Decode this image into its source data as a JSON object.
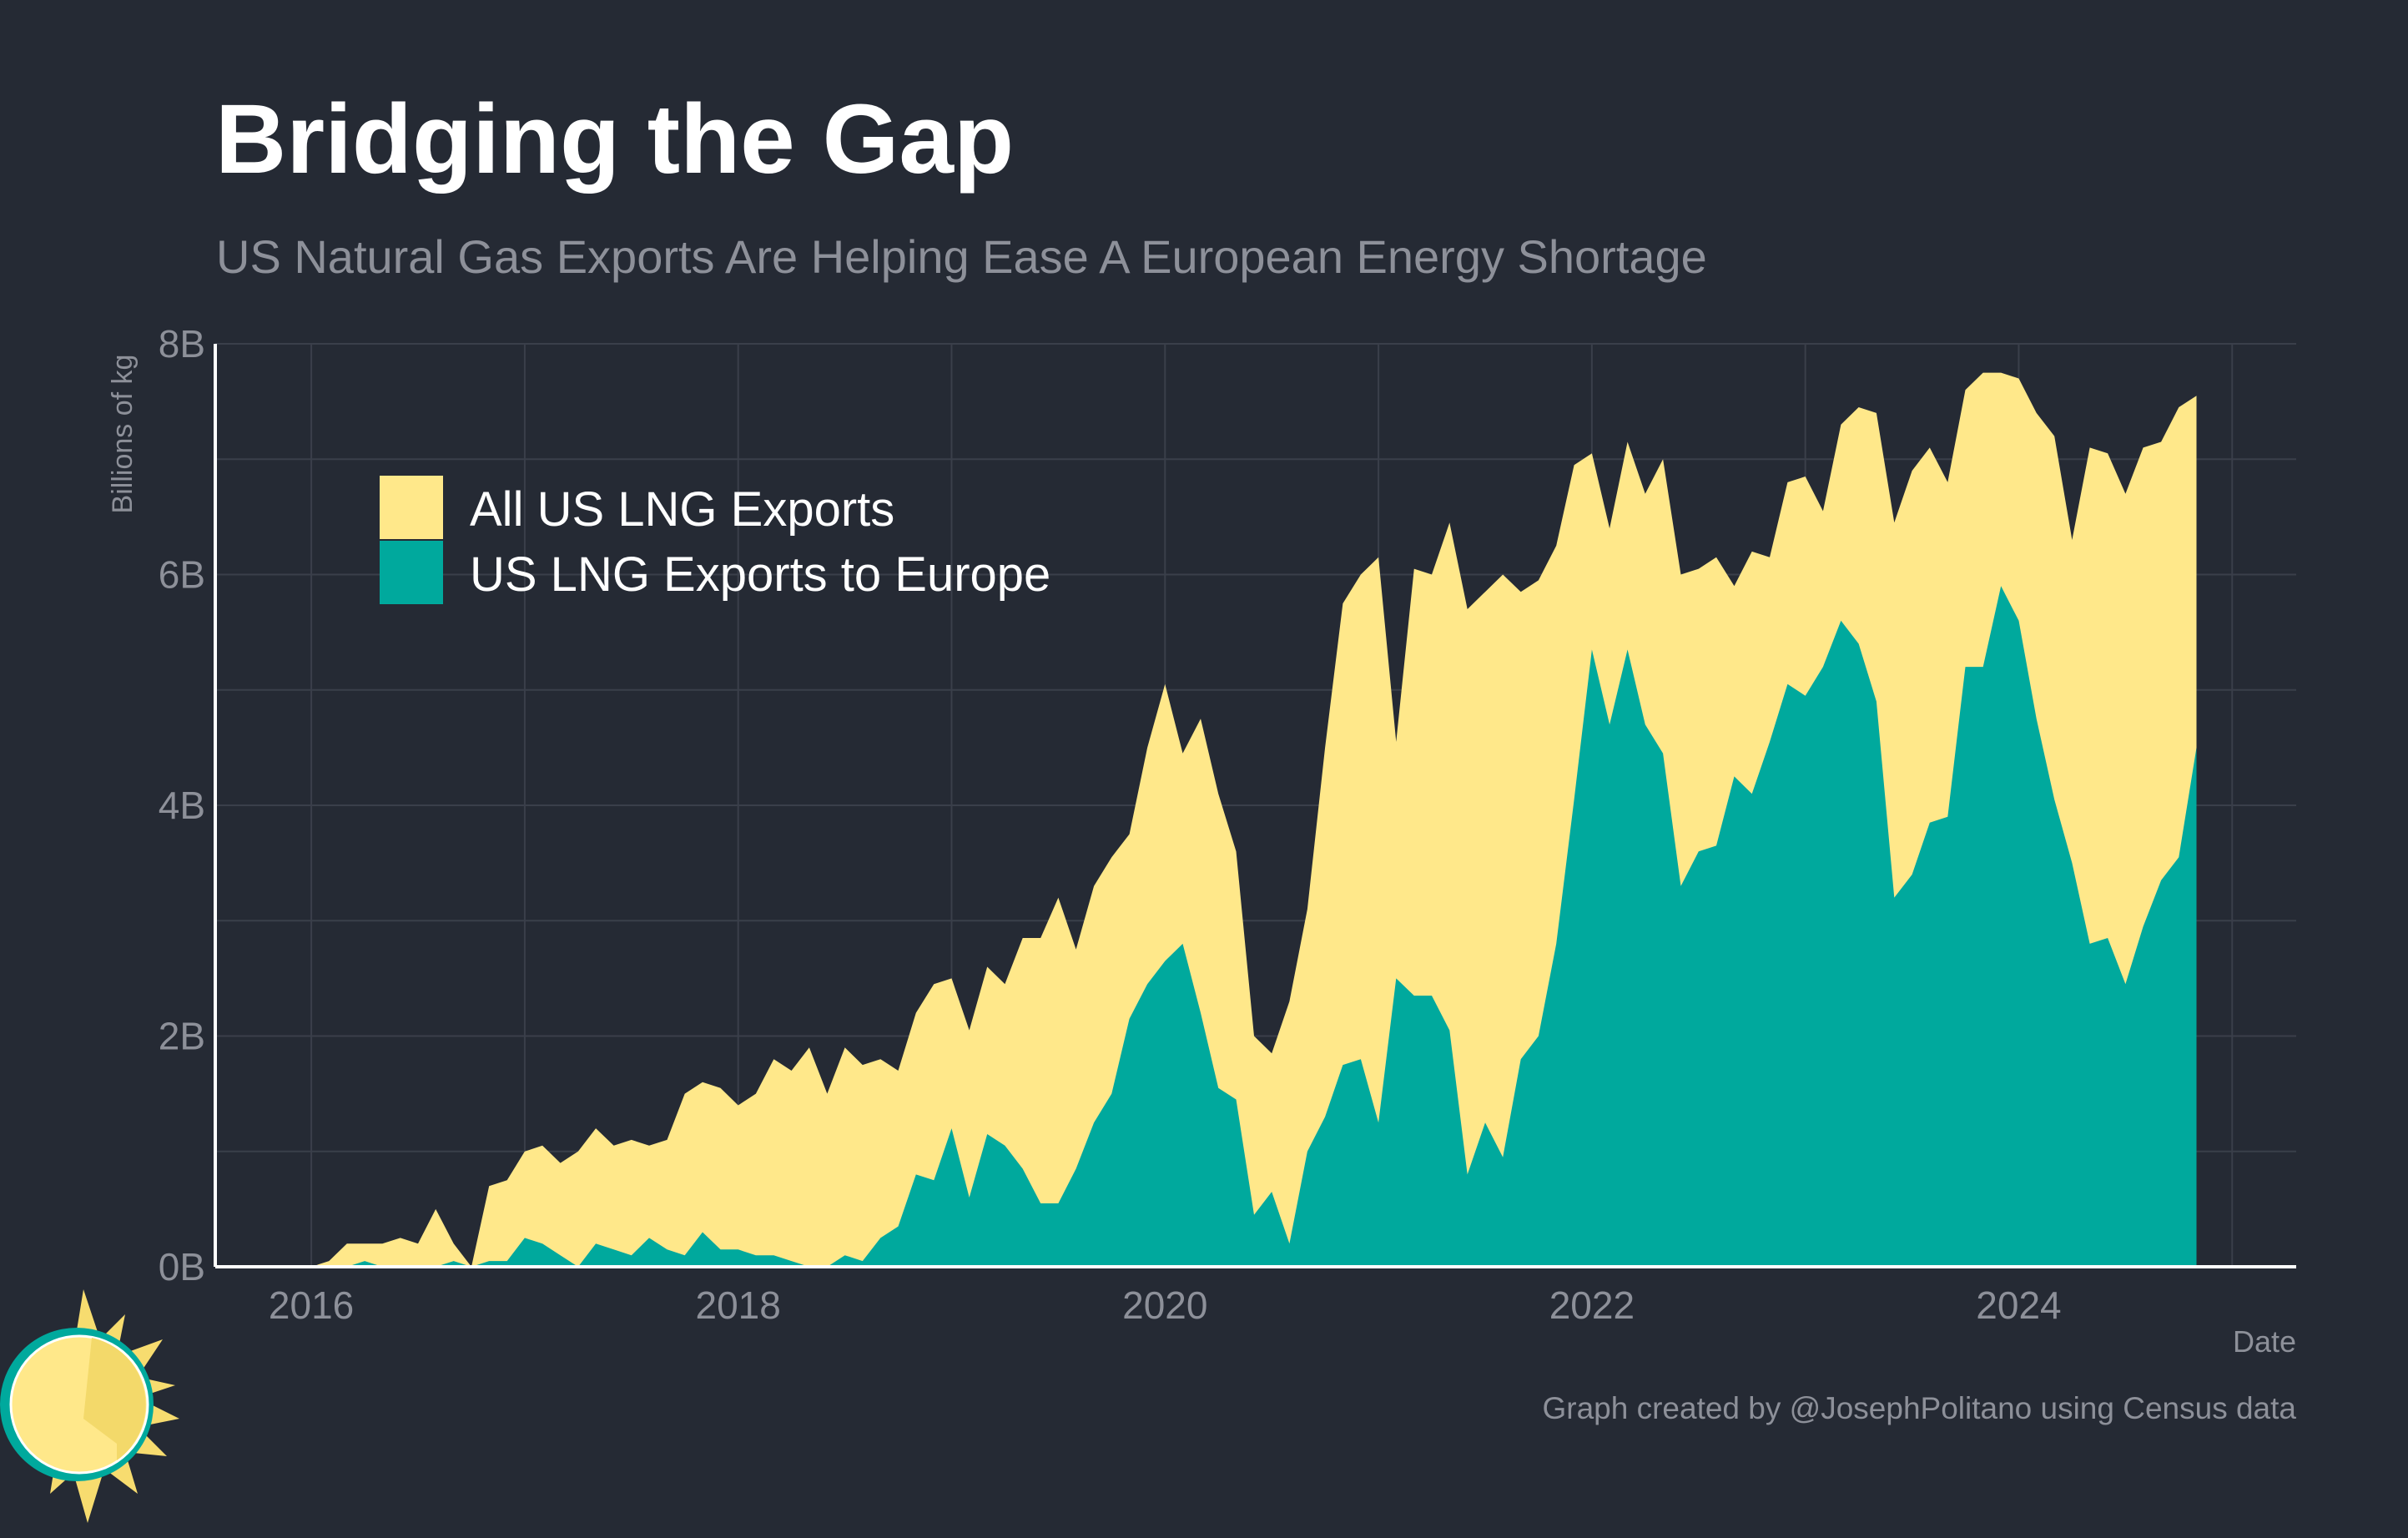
{
  "header": {
    "title": "Bridging the Gap",
    "subtitle": "US Natural Gas Exports Are Helping Ease A European Energy Shortage"
  },
  "caption": "Graph created by @JosephPolitano using Census data",
  "logo": {
    "icon": "sun-logo-icon",
    "colors": {
      "ring": "#00a99d",
      "face": "#ffe88a",
      "rays": "#f7dc6f"
    }
  },
  "colors": {
    "background": "#252a34",
    "grid": "#3a3f4a",
    "axis": "#ffffff",
    "text_muted": "#8d9099"
  },
  "chart_data": {
    "type": "area",
    "xlabel": "Date",
    "ylabel": "Billions of kg",
    "xlim": [
      2015.55,
      2025.3
    ],
    "ylim": [
      0,
      8
    ],
    "x_ticks": [
      2016,
      2018,
      2020,
      2022,
      2024
    ],
    "x_tick_labels": [
      "2016",
      "2018",
      "2020",
      "2022",
      "2024"
    ],
    "y_ticks": [
      0,
      2,
      4,
      6,
      8
    ],
    "y_tick_labels": [
      "0B",
      "2B",
      "4B",
      "6B",
      "8B"
    ],
    "grid": true,
    "legend_position": "top-left",
    "x": [
      2016.0,
      2016.083,
      2016.167,
      2016.25,
      2016.333,
      2016.417,
      2016.5,
      2016.583,
      2016.667,
      2016.75,
      2016.833,
      2016.917,
      2017.0,
      2017.083,
      2017.167,
      2017.25,
      2017.333,
      2017.417,
      2017.5,
      2017.583,
      2017.667,
      2017.75,
      2017.833,
      2017.917,
      2018.0,
      2018.083,
      2018.167,
      2018.25,
      2018.333,
      2018.417,
      2018.5,
      2018.583,
      2018.667,
      2018.75,
      2018.833,
      2018.917,
      2019.0,
      2019.083,
      2019.167,
      2019.25,
      2019.333,
      2019.417,
      2019.5,
      2019.583,
      2019.667,
      2019.75,
      2019.833,
      2019.917,
      2020.0,
      2020.083,
      2020.167,
      2020.25,
      2020.333,
      2020.417,
      2020.5,
      2020.583,
      2020.667,
      2020.75,
      2020.833,
      2020.917,
      2021.0,
      2021.083,
      2021.167,
      2021.25,
      2021.333,
      2021.417,
      2021.5,
      2021.583,
      2021.667,
      2021.75,
      2021.833,
      2021.917,
      2022.0,
      2022.083,
      2022.167,
      2022.25,
      2022.333,
      2022.417,
      2022.5,
      2022.583,
      2022.667,
      2022.75,
      2022.833,
      2022.917,
      2023.0,
      2023.083,
      2023.167,
      2023.25,
      2023.333,
      2023.417,
      2023.5,
      2023.583,
      2023.667,
      2023.75,
      2023.833,
      2023.917,
      2024.0,
      2024.083,
      2024.167,
      2024.25,
      2024.333,
      2024.417,
      2024.5,
      2024.583,
      2024.667,
      2024.75,
      2024.833
    ],
    "series": [
      {
        "name": "All US LNG Exports",
        "color": "#ffe88a",
        "values": [
          0.0,
          0.05,
          0.2,
          0.2,
          0.2,
          0.25,
          0.2,
          0.5,
          0.2,
          0.0,
          0.7,
          0.75,
          1.0,
          1.05,
          0.9,
          1.0,
          1.2,
          1.05,
          1.1,
          1.05,
          1.1,
          1.5,
          1.6,
          1.55,
          1.4,
          1.5,
          1.8,
          1.7,
          1.9,
          1.5,
          1.9,
          1.75,
          1.8,
          1.7,
          2.2,
          2.45,
          2.5,
          2.05,
          2.6,
          2.45,
          2.85,
          2.85,
          3.2,
          2.75,
          3.3,
          3.55,
          3.75,
          4.5,
          5.05,
          4.45,
          4.75,
          4.1,
          3.6,
          2.0,
          1.85,
          2.3,
          3.1,
          4.5,
          5.75,
          6.0,
          6.15,
          4.55,
          6.05,
          6.0,
          6.45,
          5.7,
          5.85,
          6.0,
          5.85,
          5.95,
          6.25,
          6.95,
          7.05,
          6.4,
          7.15,
          6.7,
          7.0,
          6.0,
          6.05,
          6.15,
          5.9,
          6.2,
          6.15,
          6.8,
          6.85,
          6.55,
          7.3,
          7.45,
          7.4,
          6.45,
          6.9,
          7.1,
          6.8,
          7.6,
          7.75,
          7.75,
          7.7,
          7.4,
          7.2,
          6.3,
          7.1,
          7.05,
          6.7,
          7.1,
          7.15,
          7.45,
          7.55
        ]
      },
      {
        "name": "US LNG Exports to Europe",
        "color": "#00a99d",
        "values": [
          0.0,
          0.0,
          0.0,
          0.05,
          0.0,
          0.0,
          0.0,
          0.0,
          0.05,
          0.0,
          0.05,
          0.05,
          0.25,
          0.2,
          0.1,
          0.0,
          0.2,
          0.15,
          0.1,
          0.25,
          0.15,
          0.1,
          0.3,
          0.15,
          0.15,
          0.1,
          0.1,
          0.05,
          0.0,
          0.0,
          0.1,
          0.05,
          0.25,
          0.35,
          0.8,
          0.75,
          1.2,
          0.6,
          1.15,
          1.05,
          0.85,
          0.55,
          0.55,
          0.85,
          1.25,
          1.5,
          2.15,
          2.45,
          2.65,
          2.8,
          2.2,
          1.55,
          1.45,
          0.45,
          0.65,
          0.2,
          1.0,
          1.3,
          1.75,
          1.8,
          1.25,
          2.5,
          2.35,
          2.35,
          2.05,
          0.8,
          1.25,
          0.95,
          1.8,
          2.0,
          2.8,
          4.05,
          5.35,
          4.7,
          5.35,
          4.7,
          4.45,
          3.3,
          3.6,
          3.65,
          4.25,
          4.1,
          4.55,
          5.05,
          4.95,
          5.2,
          5.6,
          5.4,
          4.9,
          3.2,
          3.4,
          3.85,
          3.9,
          5.2,
          5.2,
          5.9,
          5.6,
          4.75,
          4.05,
          3.5,
          2.8,
          2.85,
          2.45,
          2.95,
          3.35,
          3.55,
          4.5
        ]
      }
    ]
  }
}
